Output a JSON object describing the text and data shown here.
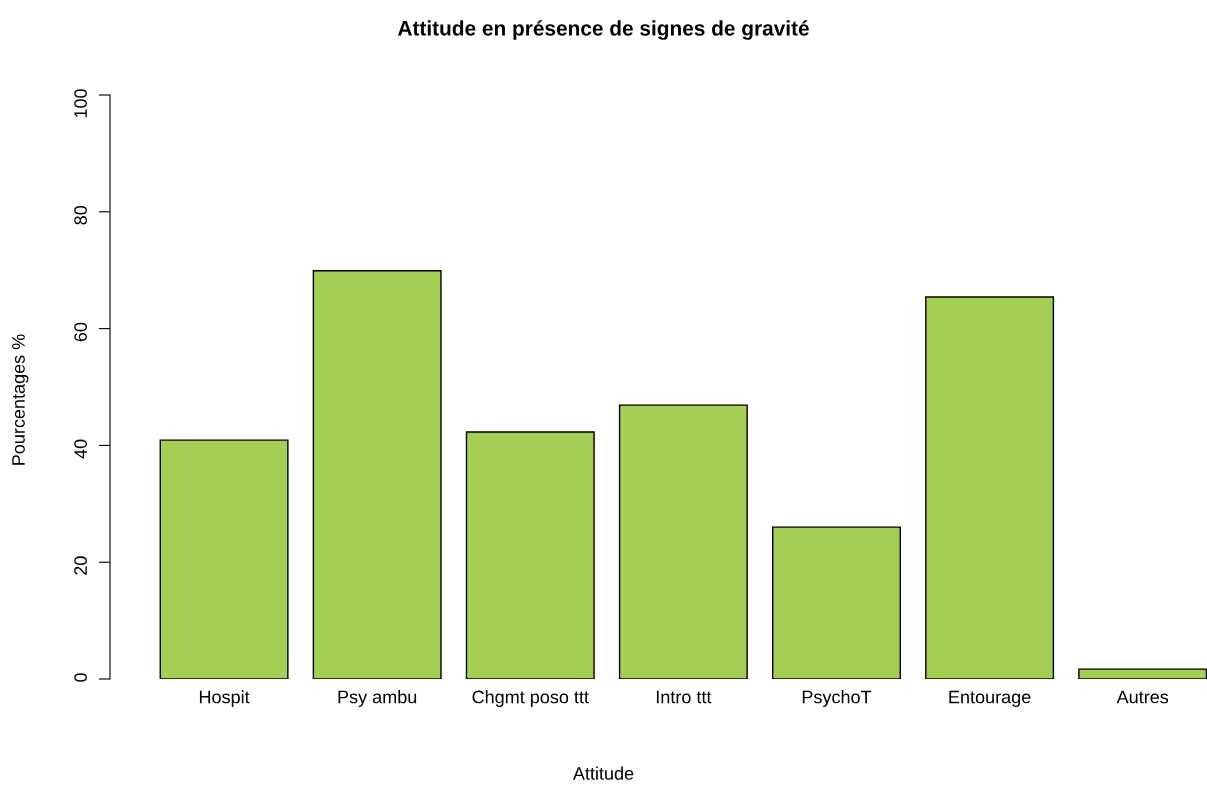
{
  "chart_data": {
    "type": "bar",
    "title": "Attitude en présence de signes de gravité",
    "xlabel": "Attitude",
    "ylabel": "Pourcentages %",
    "categories": [
      "Hospit",
      "Psy ambu",
      "Chgmt poso ttt",
      "Intro ttt",
      "PsychoT",
      "Entourage",
      "Autres"
    ],
    "values": [
      40.9,
      69.9,
      42.3,
      46.9,
      26.0,
      65.4,
      1.7
    ],
    "color": "#a5cf53",
    "ylim": [
      0,
      100
    ],
    "yticks": [
      0,
      20,
      40,
      60,
      80,
      100
    ],
    "grid": false,
    "legend": false
  }
}
